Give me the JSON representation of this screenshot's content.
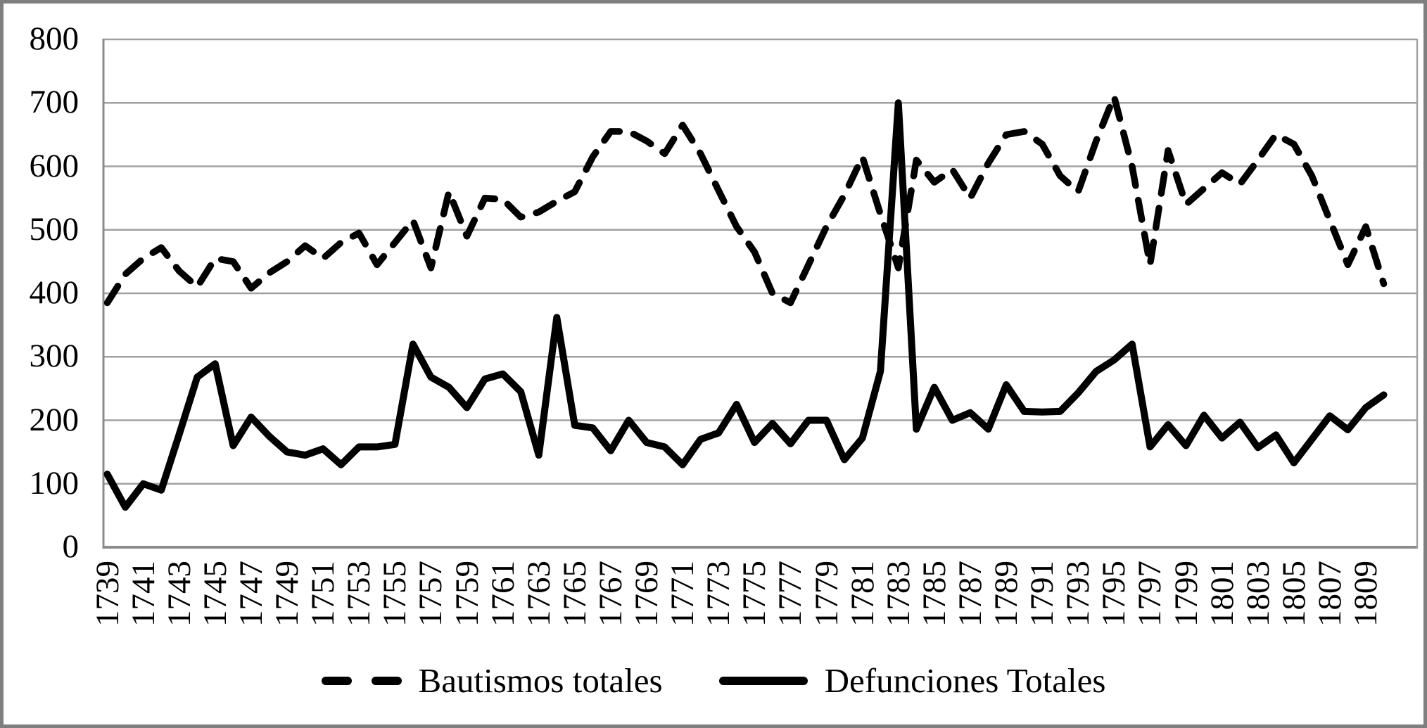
{
  "figure": {
    "background": "#ffffff",
    "border_color": "#7f7f7f",
    "gridline_color": "#a1a1a1",
    "axis_color": "#8c8c8c",
    "series_color": "#000000"
  },
  "chart_data": {
    "type": "line",
    "title": "",
    "xlabel": "",
    "ylabel": "",
    "ylim": [
      0,
      800
    ],
    "yticks": [
      0,
      100,
      200,
      300,
      400,
      500,
      600,
      700,
      800
    ],
    "grid": true,
    "legend_position": "bottom",
    "years": [
      1739,
      1740,
      1741,
      1742,
      1743,
      1744,
      1745,
      1746,
      1747,
      1748,
      1749,
      1750,
      1751,
      1752,
      1753,
      1754,
      1755,
      1756,
      1757,
      1758,
      1759,
      1760,
      1761,
      1762,
      1763,
      1764,
      1765,
      1766,
      1767,
      1768,
      1769,
      1770,
      1771,
      1772,
      1773,
      1774,
      1775,
      1776,
      1777,
      1778,
      1779,
      1780,
      1781,
      1782,
      1783,
      1784,
      1785,
      1786,
      1787,
      1788,
      1789,
      1790,
      1791,
      1792,
      1793,
      1794,
      1795,
      1796,
      1797,
      1798,
      1799,
      1800,
      1801,
      1802,
      1803,
      1804,
      1805,
      1806,
      1807,
      1808,
      1809,
      1810
    ],
    "x_tick_labels": [
      1739,
      1741,
      1743,
      1745,
      1747,
      1749,
      1751,
      1753,
      1755,
      1757,
      1759,
      1761,
      1763,
      1765,
      1767,
      1769,
      1771,
      1773,
      1775,
      1777,
      1779,
      1781,
      1783,
      1785,
      1787,
      1789,
      1791,
      1793,
      1795,
      1797,
      1799,
      1801,
      1803,
      1805,
      1807,
      1809
    ],
    "series": [
      {
        "name": "Bautismos totales",
        "line_style": "dashed",
        "color": "#000000",
        "values": [
          385,
          430,
          455,
          472,
          435,
          410,
          455,
          450,
          408,
          432,
          450,
          475,
          455,
          480,
          495,
          445,
          480,
          515,
          440,
          560,
          490,
          550,
          548,
          520,
          528,
          545,
          560,
          615,
          655,
          655,
          640,
          620,
          665,
          620,
          562,
          505,
          465,
          400,
          385,
          445,
          505,
          555,
          615,
          525,
          440,
          610,
          575,
          595,
          550,
          605,
          650,
          655,
          635,
          585,
          560,
          640,
          710,
          600,
          445,
          625,
          540,
          565,
          590,
          572,
          610,
          650,
          635,
          585,
          515,
          445,
          505,
          415
        ]
      },
      {
        "name": "Defunciones Totales",
        "line_style": "solid",
        "color": "#000000",
        "values": [
          115,
          63,
          100,
          90,
          178,
          268,
          289,
          160,
          205,
          175,
          150,
          145,
          155,
          130,
          158,
          158,
          162,
          320,
          268,
          252,
          220,
          265,
          273,
          245,
          145,
          362,
          192,
          188,
          152,
          200,
          165,
          158,
          130,
          170,
          180,
          225,
          165,
          195,
          163,
          200,
          200,
          138,
          172,
          277,
          700,
          186,
          252,
          200,
          212,
          186,
          256,
          214,
          213,
          214,
          243,
          277,
          295,
          320,
          158,
          193,
          160,
          208,
          172,
          197,
          157,
          177,
          133,
          170,
          207,
          185,
          220,
          240
        ]
      }
    ]
  }
}
